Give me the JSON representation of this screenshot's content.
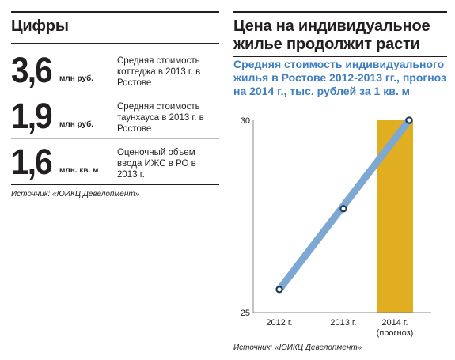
{
  "left_panel": {
    "title": "Цифры",
    "stats": [
      {
        "number": "3,6",
        "unit": "млн руб.",
        "desc": "Средняя стоимость коттеджа в 2013 г. в Ростове"
      },
      {
        "number": "1,9",
        "unit": "млн руб.",
        "desc": "Средняя стоимость таунхауса в 2013 г. в Ростове"
      },
      {
        "number": "1,6",
        "unit": "млн. кв. м",
        "desc": "Оценочный объем ввода ИЖС в РО в 2013 г."
      }
    ],
    "source": "Источник: «ЮИКЦ Девелопмент»"
  },
  "right_panel": {
    "title": "Цена на индивидуальное жилье продолжит расти",
    "subtitle": "Средняя стоимость индивидуального жилья в Ростове 2012-2013 гг., прогноз на 2014 г., тыс. рублей за 1 кв. м",
    "source": "Источник: «ЮИКЦ Девелопмент»"
  },
  "colors": {
    "line": "#7ea8d4",
    "marker_stroke": "#1f3a56",
    "forecast_fill": "#e1ad21",
    "text_dark": "#231f20",
    "subtitle": "#3f7fbf",
    "axis": "#888888"
  },
  "chart_data": {
    "type": "line",
    "categories": [
      "2012 г.",
      "2013 г.",
      "2014 г."
    ],
    "category_notes": [
      "",
      "",
      "(прогноз)"
    ],
    "values": [
      25.6,
      27.7,
      30.0
    ],
    "forecast_index": 2,
    "ylim": [
      25,
      30
    ],
    "y_ticks": [
      25,
      30
    ],
    "title": "",
    "xlabel": "",
    "ylabel": "",
    "grid": false,
    "legend": "none"
  }
}
